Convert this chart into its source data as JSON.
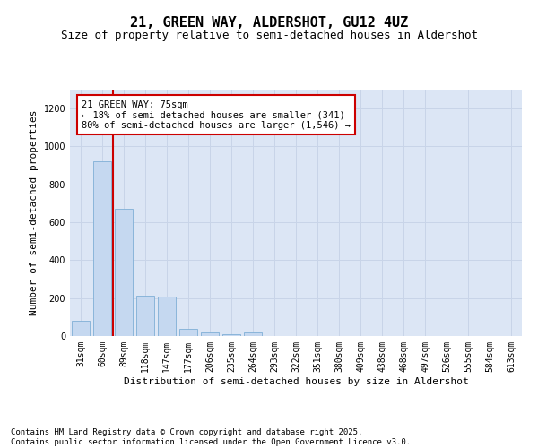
{
  "title": "21, GREEN WAY, ALDERSHOT, GU12 4UZ",
  "subtitle": "Size of property relative to semi-detached houses in Aldershot",
  "xlabel": "Distribution of semi-detached houses by size in Aldershot",
  "ylabel": "Number of semi-detached properties",
  "categories": [
    "31sqm",
    "60sqm",
    "89sqm",
    "118sqm",
    "147sqm",
    "177sqm",
    "206sqm",
    "235sqm",
    "264sqm",
    "293sqm",
    "322sqm",
    "351sqm",
    "380sqm",
    "409sqm",
    "438sqm",
    "468sqm",
    "497sqm",
    "526sqm",
    "555sqm",
    "584sqm",
    "613sqm"
  ],
  "values": [
    80,
    920,
    670,
    215,
    210,
    38,
    20,
    10,
    20,
    0,
    0,
    0,
    0,
    0,
    0,
    0,
    0,
    0,
    0,
    0,
    0
  ],
  "bar_color": "#c5d8f0",
  "bar_edgecolor": "#7fafd6",
  "grid_color": "#c8d4e8",
  "background_color": "#dce6f5",
  "vline_x": 1.5,
  "vline_color": "#cc0000",
  "annotation_text": "21 GREEN WAY: 75sqm\n← 18% of semi-detached houses are smaller (341)\n80% of semi-detached houses are larger (1,546) →",
  "annotation_box_facecolor": "#ffffff",
  "annotation_box_edgecolor": "#cc0000",
  "ylim": [
    0,
    1300
  ],
  "yticks": [
    0,
    200,
    400,
    600,
    800,
    1000,
    1200
  ],
  "footer_text": "Contains HM Land Registry data © Crown copyright and database right 2025.\nContains public sector information licensed under the Open Government Licence v3.0.",
  "title_fontsize": 11,
  "subtitle_fontsize": 9,
  "xlabel_fontsize": 8,
  "ylabel_fontsize": 8,
  "tick_fontsize": 7,
  "annotation_fontsize": 7.5,
  "footer_fontsize": 6.5
}
